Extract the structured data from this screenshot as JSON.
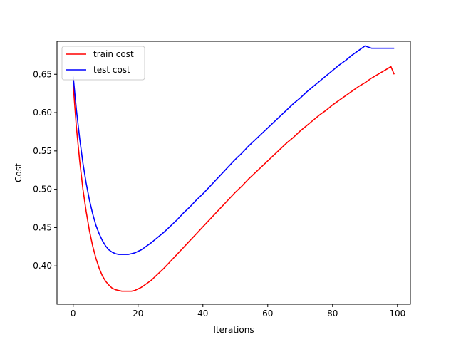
{
  "chart_data": {
    "type": "line",
    "title": "",
    "xlabel": "Iterations",
    "ylabel": "Cost",
    "xlim": [
      -5,
      104
    ],
    "ylim": [
      0.35,
      0.693
    ],
    "xticks": [
      0,
      20,
      40,
      60,
      80,
      100
    ],
    "yticks": [
      0.4,
      0.45,
      0.5,
      0.55,
      0.6,
      0.65
    ],
    "xtick_labels": [
      "0",
      "20",
      "40",
      "60",
      "80",
      "100"
    ],
    "ytick_labels": [
      "0.40",
      "0.45",
      "0.50",
      "0.55",
      "0.60",
      "0.65"
    ],
    "grid": false,
    "legend_position": "upper-left",
    "series": [
      {
        "name": "train cost",
        "color": "#ff0000",
        "x": [
          0,
          1,
          2,
          3,
          4,
          5,
          6,
          7,
          8,
          9,
          10,
          11,
          12,
          13,
          14,
          15,
          16,
          17,
          18,
          19,
          20,
          21,
          22,
          24,
          26,
          28,
          30,
          32,
          34,
          36,
          38,
          40,
          42,
          44,
          46,
          48,
          50,
          52,
          54,
          56,
          58,
          60,
          62,
          64,
          66,
          68,
          70,
          72,
          74,
          76,
          78,
          80,
          82,
          84,
          86,
          88,
          90,
          92,
          94,
          96,
          98,
          99
        ],
        "y": [
          0.636,
          0.58,
          0.537,
          0.5,
          0.471,
          0.446,
          0.426,
          0.41,
          0.397,
          0.387,
          0.38,
          0.375,
          0.371,
          0.369,
          0.368,
          0.367,
          0.367,
          0.367,
          0.367,
          0.368,
          0.37,
          0.372,
          0.375,
          0.381,
          0.389,
          0.397,
          0.406,
          0.415,
          0.424,
          0.433,
          0.442,
          0.451,
          0.46,
          0.469,
          0.478,
          0.487,
          0.496,
          0.504,
          0.513,
          0.521,
          0.529,
          0.537,
          0.545,
          0.553,
          0.561,
          0.568,
          0.576,
          0.583,
          0.59,
          0.597,
          0.603,
          0.61,
          0.616,
          0.622,
          0.628,
          0.634,
          0.639,
          0.645,
          0.65,
          0.655,
          0.66,
          0.65
        ]
      },
      {
        "name": "test cost",
        "color": "#0000ff",
        "x": [
          0,
          1,
          2,
          3,
          4,
          5,
          6,
          7,
          8,
          9,
          10,
          11,
          12,
          13,
          14,
          15,
          16,
          17,
          18,
          19,
          20,
          21,
          22,
          24,
          26,
          28,
          30,
          32,
          34,
          36,
          38,
          40,
          42,
          44,
          46,
          48,
          50,
          52,
          54,
          56,
          58,
          60,
          62,
          64,
          66,
          68,
          70,
          72,
          74,
          76,
          78,
          80,
          82,
          84,
          86,
          88,
          90,
          92,
          94,
          96,
          98,
          99
        ],
        "y": [
          0.647,
          0.603,
          0.566,
          0.534,
          0.508,
          0.486,
          0.468,
          0.453,
          0.442,
          0.433,
          0.426,
          0.421,
          0.418,
          0.416,
          0.415,
          0.415,
          0.415,
          0.415,
          0.416,
          0.417,
          0.419,
          0.421,
          0.424,
          0.43,
          0.437,
          0.444,
          0.452,
          0.46,
          0.469,
          0.477,
          0.486,
          0.494,
          0.503,
          0.512,
          0.521,
          0.53,
          0.539,
          0.547,
          0.556,
          0.564,
          0.572,
          0.58,
          0.588,
          0.596,
          0.604,
          0.612,
          0.619,
          0.627,
          0.634,
          0.641,
          0.648,
          0.655,
          0.662,
          0.668,
          0.675,
          0.681,
          0.687,
          0.684,
          0.684,
          0.684,
          0.684,
          0.684
        ]
      }
    ]
  }
}
